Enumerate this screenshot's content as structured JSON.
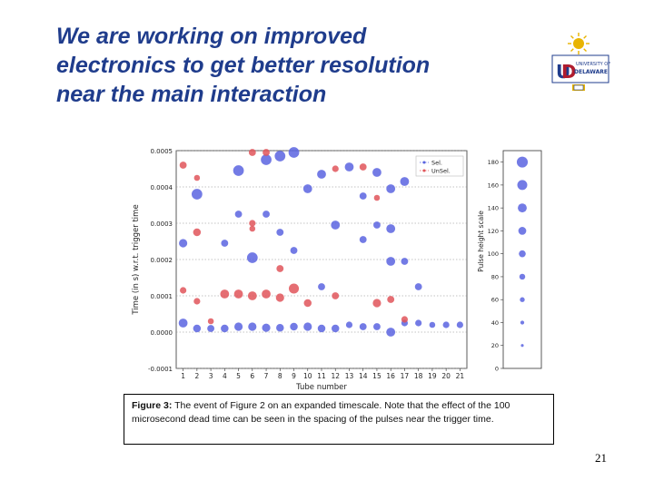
{
  "slide": {
    "title_lines": [
      "We are working on improved",
      "electronics to get better resolution",
      "near the main interaction"
    ],
    "page_number": "21"
  },
  "logo": {
    "text_top": "UNIVERSITY OF",
    "text_main": "DELAWARE",
    "colors": {
      "gold": "#e8b400",
      "blue": "#1f3c8c",
      "red": "#b01c2e"
    }
  },
  "caption": {
    "label": "Figure 3:",
    "text": " The event of Figure 2 on an expanded timescale. Note that the effect of the 100 microsecond dead time can be seen in the spacing of the pulses near the trigger time."
  },
  "colors": {
    "sel": "#5b64e0",
    "unsel": "#e0555a",
    "title": "#1f3c8c"
  },
  "chart_data": {
    "type": "scatter",
    "xlabel": "Tube number",
    "ylabel": "Time (in s) w.r.t. trigger time",
    "x_ticks": [
      "1",
      "2",
      "3",
      "4",
      "5",
      "6",
      "7",
      "8",
      "9",
      "10",
      "11",
      "12",
      "13",
      "14",
      "15",
      "16",
      "17",
      "18",
      "19",
      "20",
      "21"
    ],
    "y_ticks": [
      "-0.0001",
      "0.0000",
      "0.0001",
      "0.0002",
      "0.0003",
      "0.0004",
      "0.0005"
    ],
    "ylim": [
      -0.0001,
      0.0005
    ],
    "xlim": [
      0.5,
      21.5
    ],
    "grid": "horizontal dotted",
    "legend": {
      "position": "top-right",
      "entries": [
        "Sel.",
        "UnSel."
      ]
    },
    "series": [
      {
        "name": "Sel.",
        "points": [
          [
            1,
            2.5e-05,
            60
          ],
          [
            2,
            1e-05,
            50
          ],
          [
            3,
            1e-05,
            45
          ],
          [
            4,
            1e-05,
            50
          ],
          [
            5,
            1.5e-05,
            55
          ],
          [
            6,
            1.5e-05,
            55
          ],
          [
            7,
            1.2e-05,
            55
          ],
          [
            8,
            1.2e-05,
            50
          ],
          [
            9,
            1.5e-05,
            50
          ],
          [
            10,
            1.5e-05,
            55
          ],
          [
            11,
            1e-05,
            50
          ],
          [
            12,
            1e-05,
            50
          ],
          [
            13,
            2e-05,
            40
          ],
          [
            14,
            1.5e-05,
            45
          ],
          [
            15,
            1.5e-05,
            45
          ],
          [
            16,
            0.0,
            60
          ],
          [
            17,
            2.5e-05,
            40
          ],
          [
            18,
            2.5e-05,
            40
          ],
          [
            19,
            2e-05,
            35
          ],
          [
            20,
            2e-05,
            40
          ],
          [
            21,
            2e-05,
            40
          ],
          [
            1,
            0.000245,
            55
          ],
          [
            2,
            0.00038,
            75
          ],
          [
            4,
            0.000245,
            45
          ],
          [
            5,
            0.000445,
            75
          ],
          [
            5,
            0.000325,
            45
          ],
          [
            6,
            0.000205,
            75
          ],
          [
            7,
            0.000475,
            75
          ],
          [
            7,
            0.000325,
            45
          ],
          [
            8,
            0.000485,
            75
          ],
          [
            8,
            0.000275,
            45
          ],
          [
            9,
            0.000495,
            75
          ],
          [
            9,
            0.000225,
            45
          ],
          [
            10,
            0.000395,
            60
          ],
          [
            11,
            0.000435,
            60
          ],
          [
            11,
            0.000125,
            45
          ],
          [
            12,
            0.000295,
            60
          ],
          [
            13,
            0.000455,
            60
          ],
          [
            14,
            0.000375,
            45
          ],
          [
            14,
            0.000255,
            45
          ],
          [
            15,
            0.00044,
            60
          ],
          [
            15,
            0.000295,
            45
          ],
          [
            16,
            0.000395,
            60
          ],
          [
            16,
            0.000285,
            60
          ],
          [
            16,
            0.000195,
            60
          ],
          [
            17,
            0.000415,
            60
          ],
          [
            17,
            0.000195,
            45
          ],
          [
            18,
            0.000125,
            45
          ]
        ]
      },
      {
        "name": "UnSel.",
        "points": [
          [
            1,
            0.00046,
            45
          ],
          [
            2,
            0.000425,
            35
          ],
          [
            2,
            0.000275,
            50
          ],
          [
            4,
            0.000105,
            60
          ],
          [
            5,
            0.000105,
            60
          ],
          [
            6,
            0.000495,
            45
          ],
          [
            6,
            0.0001,
            60
          ],
          [
            7,
            0.000495,
            45
          ],
          [
            7,
            0.000105,
            60
          ],
          [
            8,
            0.000175,
            45
          ],
          [
            8,
            9.5e-05,
            55
          ],
          [
            9,
            0.00012,
            70
          ],
          [
            10,
            8e-05,
            50
          ],
          [
            12,
            0.0001,
            45
          ],
          [
            12,
            0.00045,
            40
          ],
          [
            14,
            0.000455,
            45
          ],
          [
            15,
            8e-05,
            55
          ],
          [
            15,
            0.00037,
            35
          ],
          [
            16,
            9e-05,
            45
          ],
          [
            17,
            3.5e-05,
            40
          ],
          [
            1,
            0.000115,
            40
          ],
          [
            2,
            8.5e-05,
            40
          ],
          [
            6,
            0.0003,
            40
          ],
          [
            6,
            0.000285,
            35
          ],
          [
            3,
            3e-05,
            35
          ]
        ]
      }
    ],
    "size_legend": {
      "label": "Pulse height scale",
      "ticks": [
        "0",
        "20",
        "40",
        "60",
        "80",
        "100",
        "120",
        "140",
        "160",
        "180"
      ],
      "values": [
        20,
        40,
        60,
        80,
        100,
        120,
        140,
        160,
        180
      ],
      "range": [
        0,
        190
      ]
    }
  }
}
